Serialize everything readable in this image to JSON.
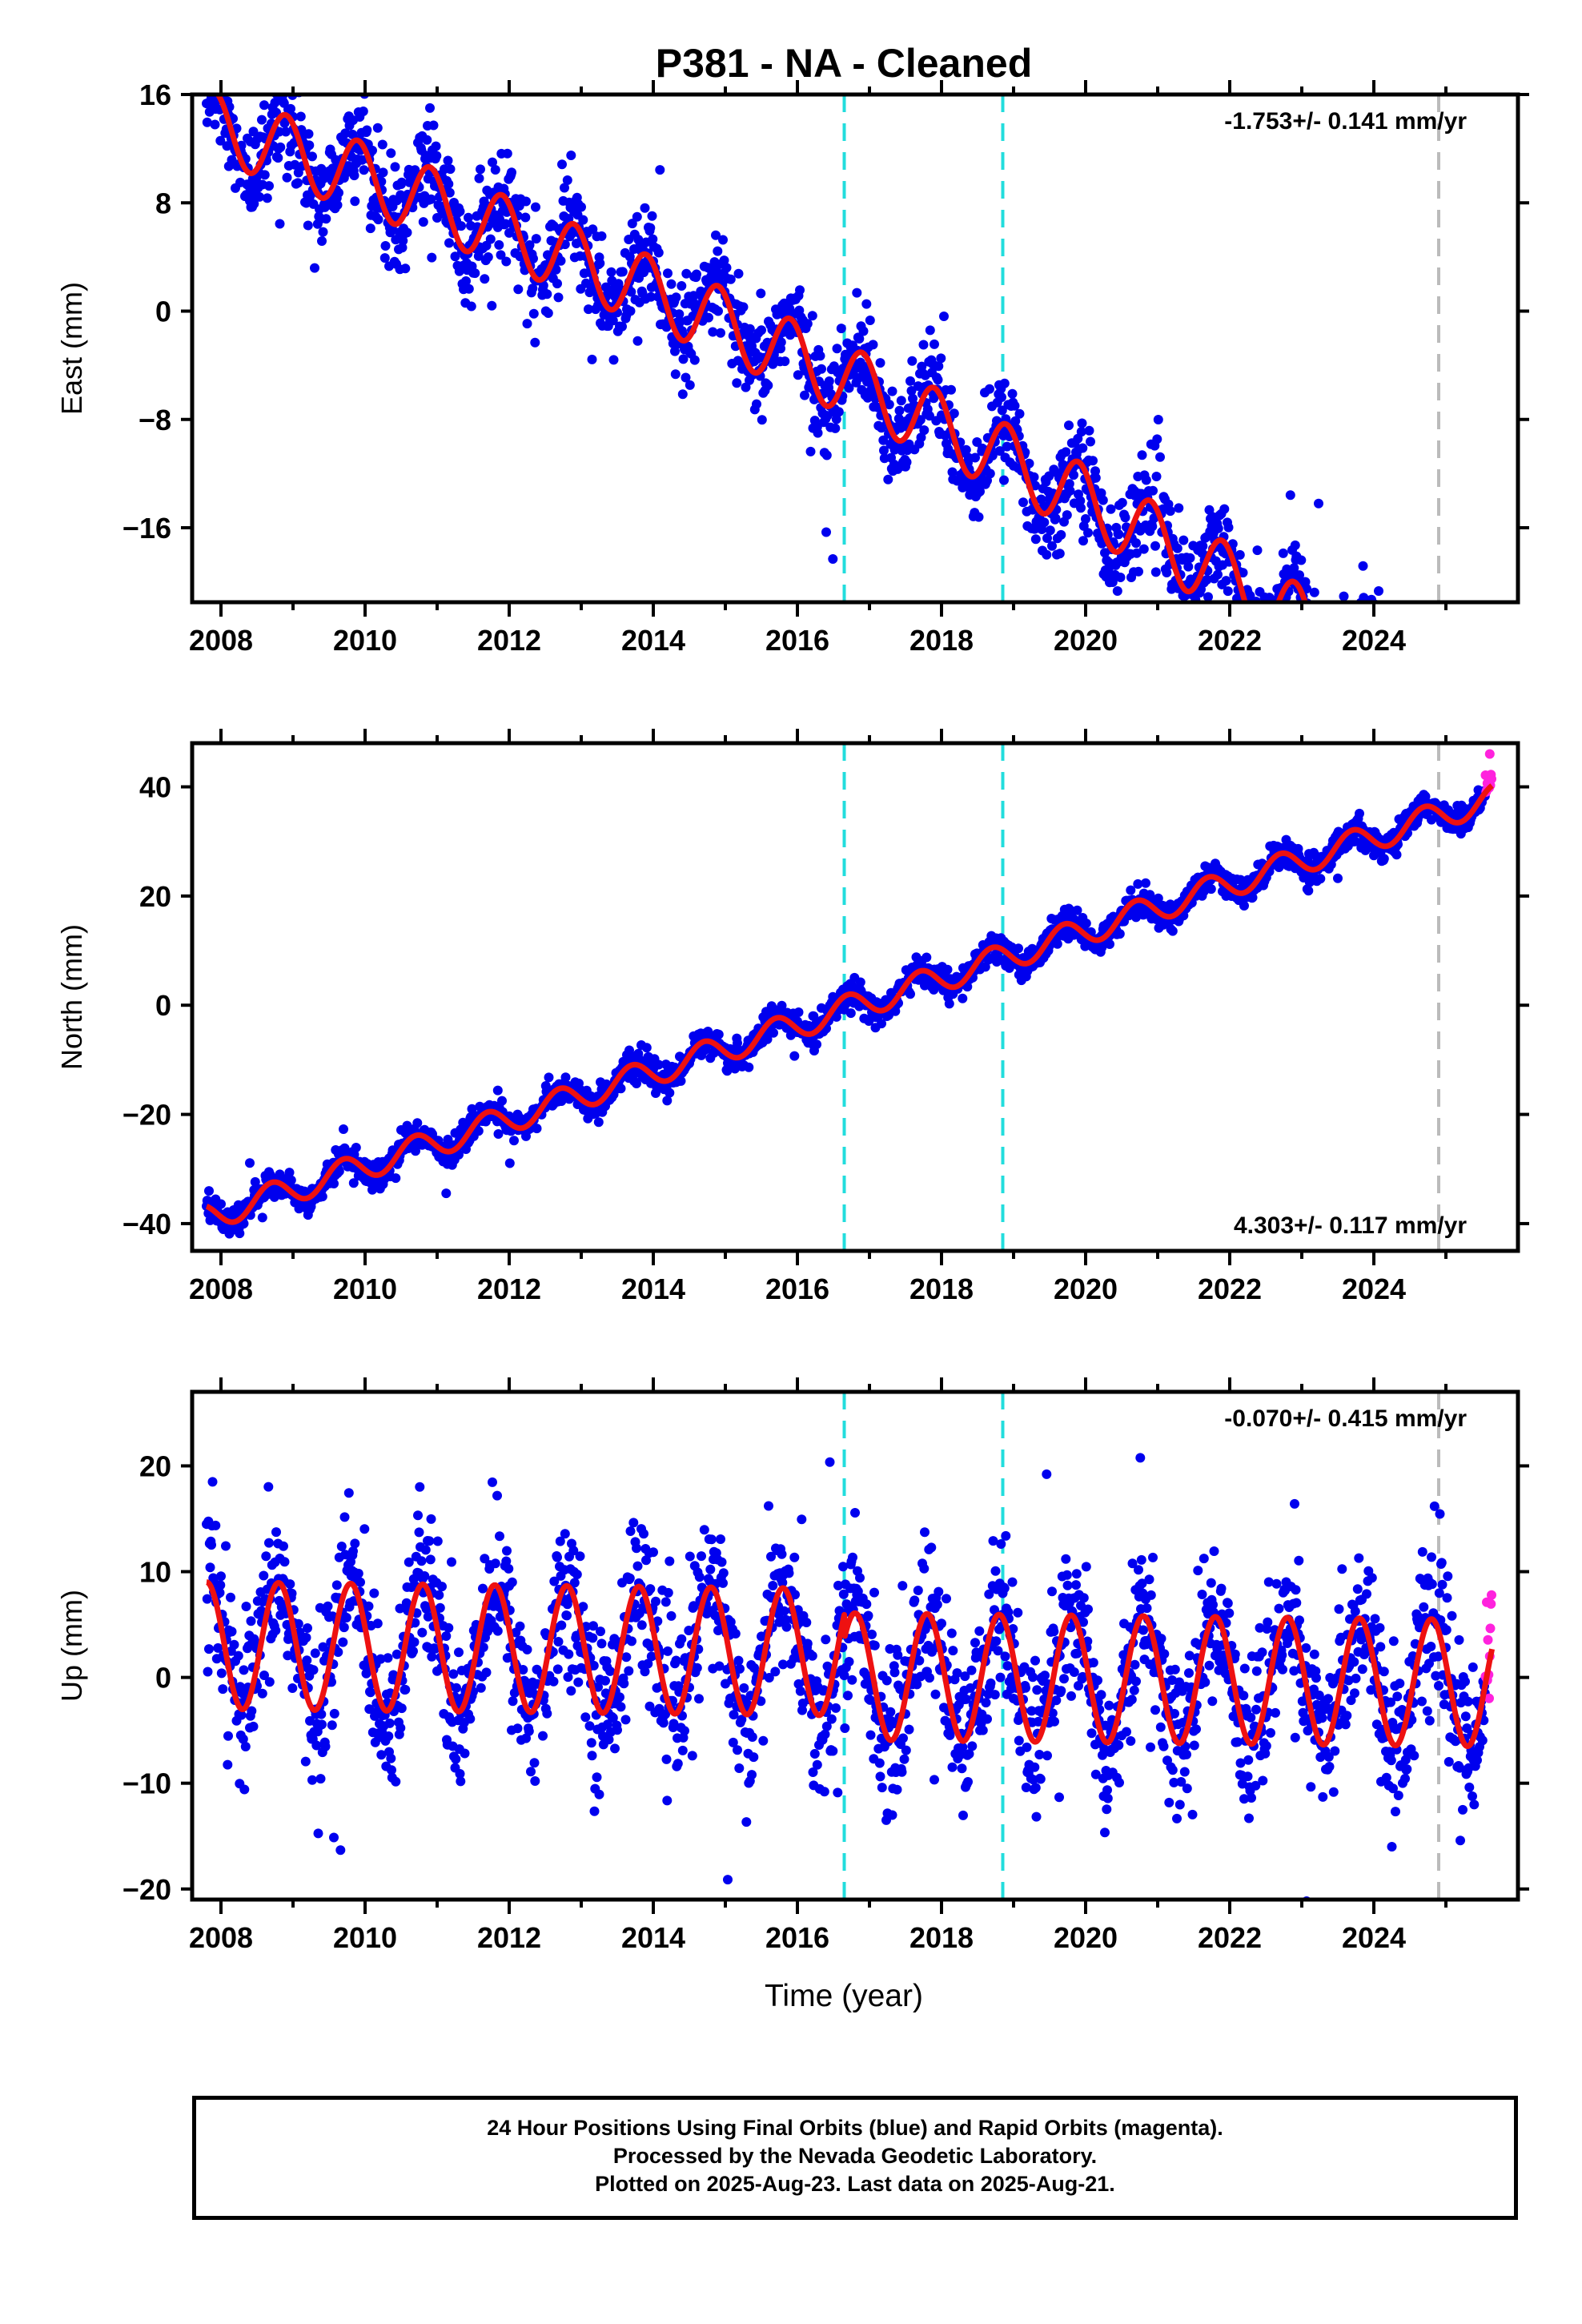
{
  "chart_data": {
    "type": "scatter",
    "title": "P381  - NA - Cleaned",
    "xlabel": "Time (year)",
    "xlim": [
      2007.6,
      2026.0
    ],
    "x_ticks": [
      "2008",
      "2010",
      "2012",
      "2014",
      "2016",
      "2018",
      "2020",
      "2022",
      "2024"
    ],
    "vertical_lines": [
      {
        "x": 2016.65,
        "color": "#22dddd",
        "style": "dashed"
      },
      {
        "x": 2018.85,
        "color": "#22dddd",
        "style": "dashed"
      },
      {
        "x": 2024.9,
        "color": "#bbbbbb",
        "style": "dashed"
      }
    ],
    "final_orbit_color": "#0000ee",
    "rapid_orbit_color": "#ff22dd",
    "model_color": "#ee1111",
    "data_range": [
      2007.8,
      2025.64
    ],
    "rapid_start": 2025.55,
    "panels": [
      {
        "ylabel": "East (mm)",
        "ylim": [
          -21.5,
          16
        ],
        "y_ticks": [
          16,
          8,
          0,
          -8,
          -16
        ],
        "rate_label": "-1.753+/- 0.141 mm/yr",
        "rate_position": "top-right",
        "model": {
          "offset": 13.5,
          "rate": -1.753,
          "quad": -0.045,
          "t0": 2008,
          "amplitude": 2.6,
          "phase": 0.35
        },
        "scatter_sd": 1.8
      },
      {
        "ylabel": "North (mm)",
        "ylim": [
          -45,
          48
        ],
        "y_ticks": [
          40,
          20,
          0,
          -20,
          -40
        ],
        "rate_label": "4.303+/- 0.117 mm/yr",
        "rate_position": "bottom-right",
        "model": {
          "offset": -38.0,
          "rate": 4.303,
          "quad": 0.0,
          "t0": 2008,
          "amplitude": 2.5,
          "phase": 0.55
        },
        "scatter_sd": 1.3
      },
      {
        "ylabel": "Up (mm)",
        "ylim": [
          -21,
          27
        ],
        "y_ticks": [
          20,
          10,
          0,
          -10,
          -20
        ],
        "rate_label": "-0.070+/- 0.415 mm/yr",
        "rate_position": "top-right",
        "model": {
          "offset": 3.0,
          "offset_after_2016_65": -2.3,
          "rate": -0.07,
          "quad": 0.0,
          "t0": 2008,
          "amplitude": 6.0,
          "phase": 0.45
        },
        "scatter_sd": 3.6
      }
    ]
  },
  "caption": {
    "line1": "24 Hour Positions Using Final Orbits (blue) and Rapid Orbits (magenta).",
    "line2": "Processed by the Nevada Geodetic Laboratory.",
    "line3": "Plotted on 2025-Aug-23. Last data on 2025-Aug-21."
  }
}
